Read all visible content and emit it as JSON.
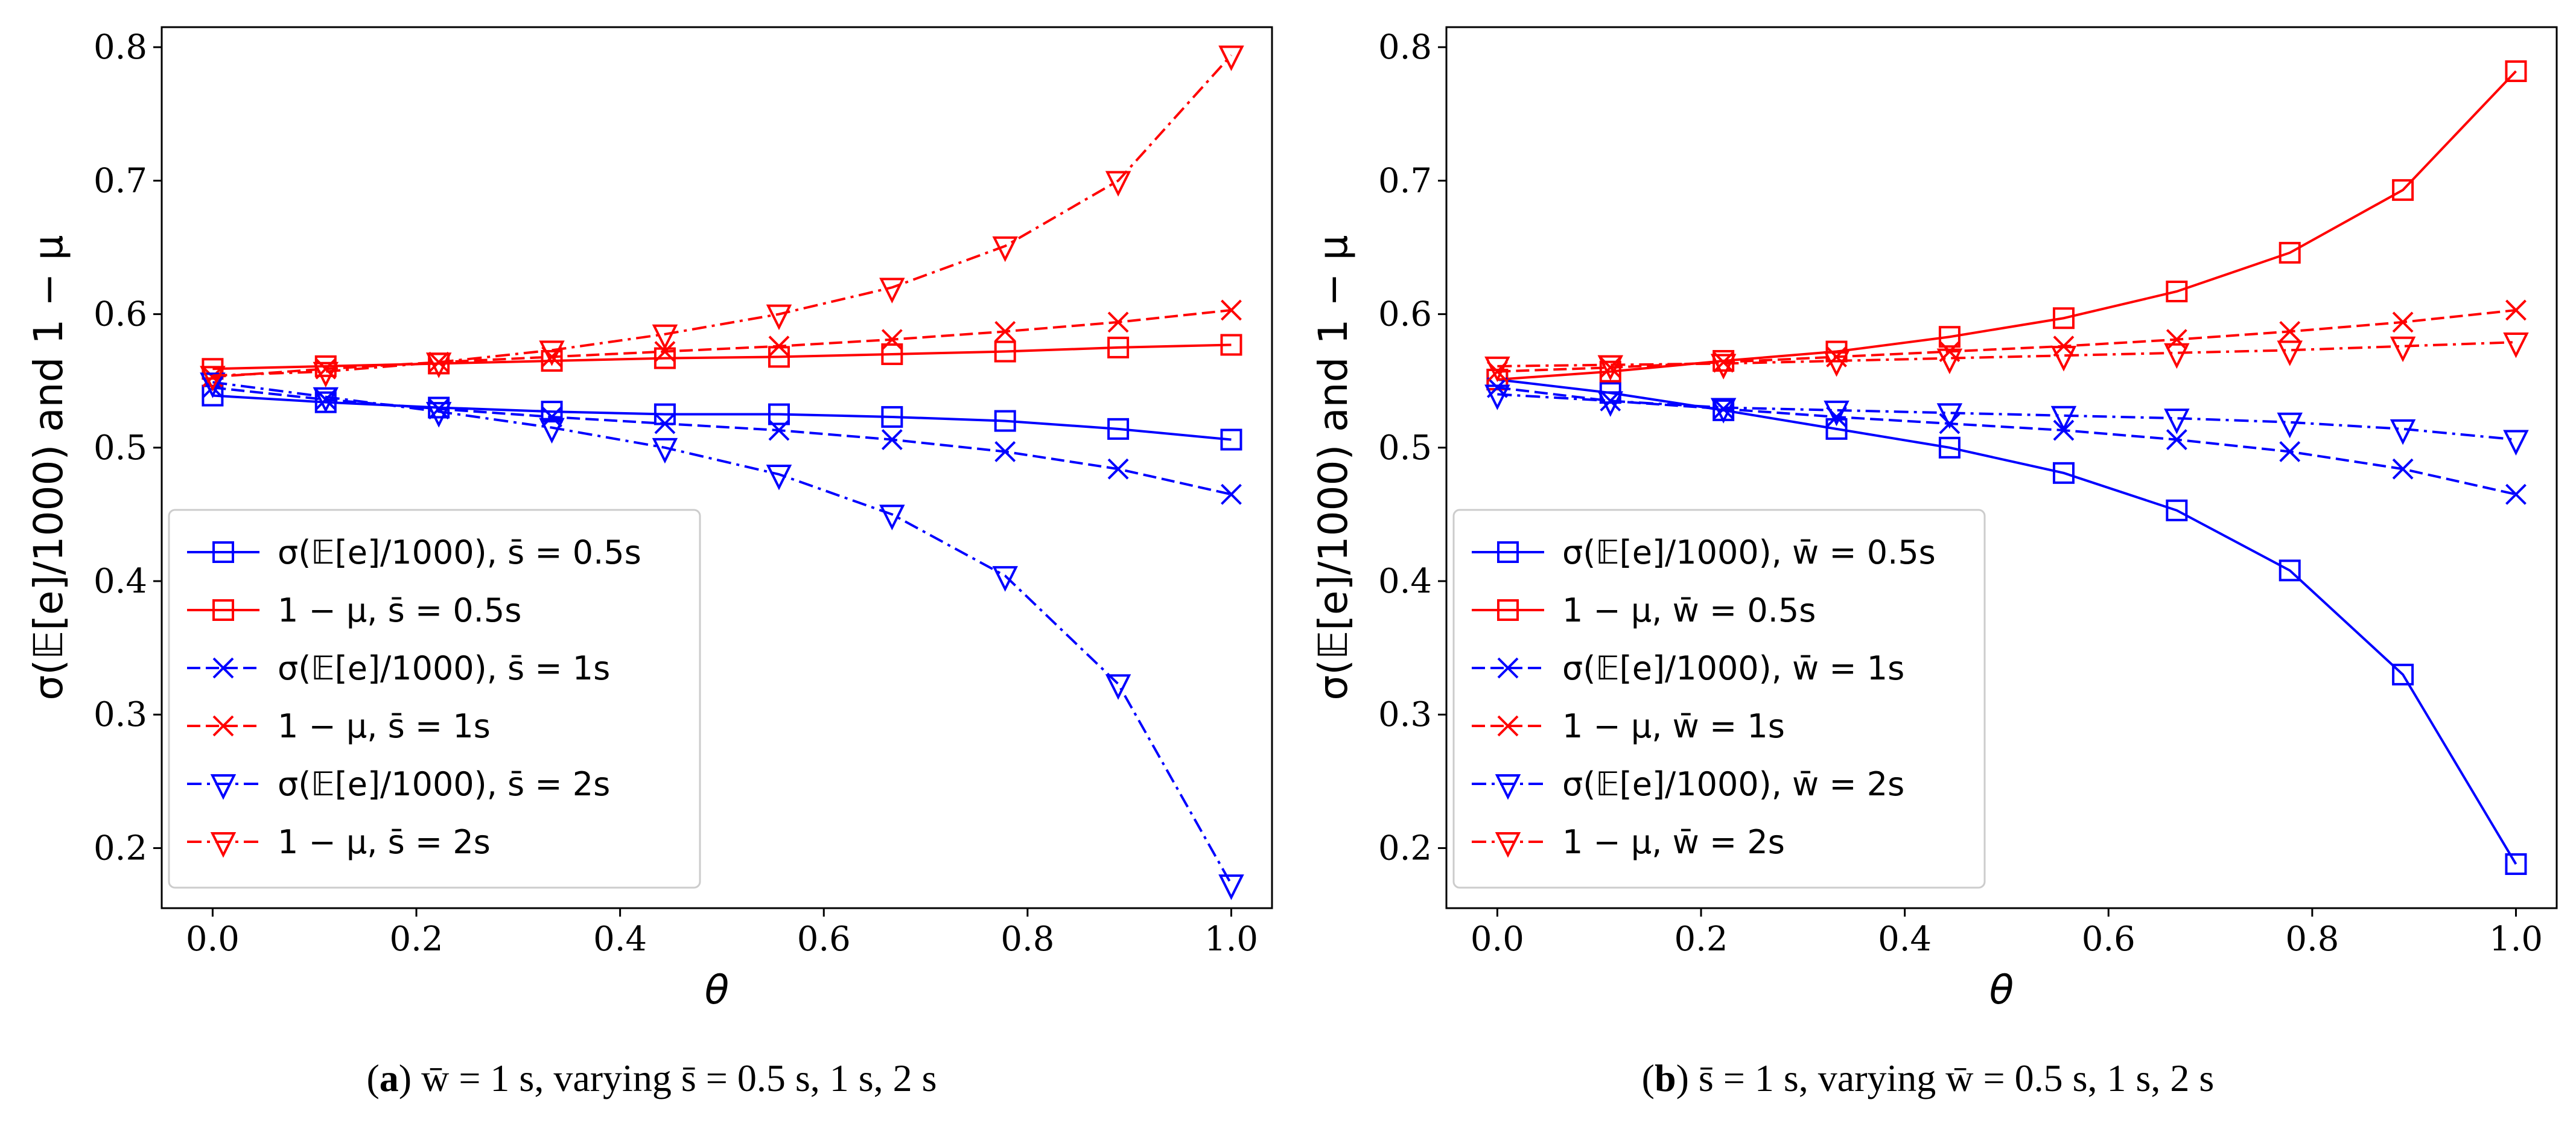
{
  "chart_data": [
    {
      "type": "line",
      "panel_caption": {
        "label": "a",
        "text": " w̄ = 1 s, varying s̄ = 0.5 s, 1 s, 2 s"
      },
      "xlabel": "θ",
      "ylabel": "σ(𝔼[e]/1000) and 1 − μ",
      "xlim": [
        -0.05,
        1.04
      ],
      "ylim": [
        0.155,
        0.815
      ],
      "xticks": [
        "0.0",
        "0.2",
        "0.4",
        "0.6",
        "0.8",
        "1.0"
      ],
      "yticks": [
        "0.2",
        "0.3",
        "0.4",
        "0.5",
        "0.6",
        "0.7",
        "0.8"
      ],
      "grid": false,
      "legend_position": "lower-left",
      "x": [
        0.0,
        0.111,
        0.222,
        0.333,
        0.444,
        0.556,
        0.667,
        0.778,
        0.889,
        1.0
      ],
      "series": [
        {
          "name": "σ(𝔼[e]/1000), s̄ = 0.5s",
          "color": "#0000ff",
          "dash": "solid",
          "marker": "square",
          "values": [
            0.539,
            0.534,
            0.53,
            0.527,
            0.525,
            0.525,
            0.523,
            0.52,
            0.514,
            0.506
          ]
        },
        {
          "name": "1 − μ, s̄ = 0.5s",
          "color": "#ff0000",
          "dash": "solid",
          "marker": "square",
          "values": [
            0.559,
            0.561,
            0.563,
            0.565,
            0.567,
            0.568,
            0.57,
            0.572,
            0.575,
            0.577
          ]
        },
        {
          "name": "σ(𝔼[e]/1000), s̄ = 1s",
          "color": "#0000ff",
          "dash": "dashed",
          "marker": "x",
          "values": [
            0.545,
            0.536,
            0.529,
            0.523,
            0.518,
            0.513,
            0.506,
            0.497,
            0.484,
            0.465
          ]
        },
        {
          "name": "1 − μ, s̄ = 1s",
          "color": "#ff0000",
          "dash": "dashed",
          "marker": "x",
          "values": [
            0.553,
            0.559,
            0.564,
            0.568,
            0.572,
            0.576,
            0.581,
            0.587,
            0.594,
            0.603
          ]
        },
        {
          "name": "σ(𝔼[e]/1000), s̄ = 2s",
          "color": "#0000ff",
          "dash": "dashdot",
          "marker": "triangle-down",
          "values": [
            0.549,
            0.538,
            0.527,
            0.515,
            0.5,
            0.48,
            0.45,
            0.404,
            0.323,
            0.173
          ]
        },
        {
          "name": "1 − μ, s̄ = 2s",
          "color": "#ff0000",
          "dash": "dashdot",
          "marker": "triangle-down",
          "values": [
            0.554,
            0.557,
            0.564,
            0.573,
            0.585,
            0.6,
            0.62,
            0.651,
            0.7,
            0.794
          ]
        }
      ]
    },
    {
      "type": "line",
      "panel_caption": {
        "label": "b",
        "text": " s̄ = 1 s, varying w̄ = 0.5 s, 1 s, 2 s"
      },
      "xlabel": "θ",
      "ylabel": "σ(𝔼[e]/1000) and 1 − μ",
      "xlim": [
        -0.05,
        1.04
      ],
      "ylim": [
        0.155,
        0.815
      ],
      "xticks": [
        "0.0",
        "0.2",
        "0.4",
        "0.6",
        "0.8",
        "1.0"
      ],
      "yticks": [
        "0.2",
        "0.3",
        "0.4",
        "0.5",
        "0.6",
        "0.7",
        "0.8"
      ],
      "grid": false,
      "legend_position": "lower-left",
      "x": [
        0.0,
        0.111,
        0.222,
        0.333,
        0.444,
        0.556,
        0.667,
        0.778,
        0.889,
        1.0
      ],
      "series": [
        {
          "name": "σ(𝔼[e]/1000), w̄ = 0.5s",
          "color": "#0000ff",
          "dash": "solid",
          "marker": "square",
          "values": [
            0.551,
            0.541,
            0.528,
            0.514,
            0.5,
            0.481,
            0.453,
            0.408,
            0.33,
            0.188
          ]
        },
        {
          "name": "1 − μ, w̄ = 0.5s",
          "color": "#ff0000",
          "dash": "solid",
          "marker": "square",
          "values": [
            0.551,
            0.557,
            0.565,
            0.572,
            0.583,
            0.597,
            0.617,
            0.646,
            0.693,
            0.782
          ]
        },
        {
          "name": "σ(𝔼[e]/1000), w̄ = 1s",
          "color": "#0000ff",
          "dash": "dashed",
          "marker": "x",
          "values": [
            0.545,
            0.535,
            0.529,
            0.523,
            0.518,
            0.513,
            0.506,
            0.497,
            0.484,
            0.465
          ]
        },
        {
          "name": "1 − μ, w̄ = 1s",
          "color": "#ff0000",
          "dash": "dashed",
          "marker": "x",
          "values": [
            0.557,
            0.56,
            0.564,
            0.568,
            0.572,
            0.576,
            0.581,
            0.587,
            0.594,
            0.603
          ]
        },
        {
          "name": "σ(𝔼[e]/1000), w̄ = 2s",
          "color": "#0000ff",
          "dash": "dashdot",
          "marker": "triangle-down",
          "values": [
            0.54,
            0.535,
            0.53,
            0.528,
            0.526,
            0.524,
            0.522,
            0.519,
            0.514,
            0.506
          ]
        },
        {
          "name": "1 − μ, w̄ = 2s",
          "color": "#ff0000",
          "dash": "dashdot",
          "marker": "triangle-down",
          "values": [
            0.561,
            0.562,
            0.563,
            0.565,
            0.567,
            0.569,
            0.571,
            0.573,
            0.576,
            0.579
          ]
        }
      ]
    }
  ]
}
